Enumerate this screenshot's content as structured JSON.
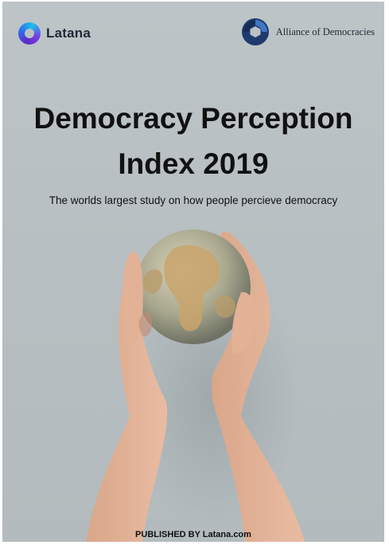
{
  "brand_left": {
    "name": "Latana",
    "icon": "latana-logo-icon"
  },
  "brand_right": {
    "name": "Alliance of Democracies",
    "icon": "alliance-logo-icon"
  },
  "title_line1": "Democracy Perception",
  "title_line2": "Index 2019",
  "subtitle": "The worlds largest study on how people percieve democracy",
  "image": {
    "subject": "hands-holding-globe"
  },
  "publisher": "PUBLISHED BY Latana.com",
  "colors": {
    "background": "#b7bfc2",
    "text": "#111111",
    "latana_purple": "#5b2cc9",
    "latana_cyan": "#1dc1e8",
    "alliance_navy": "#1e3a6e"
  }
}
